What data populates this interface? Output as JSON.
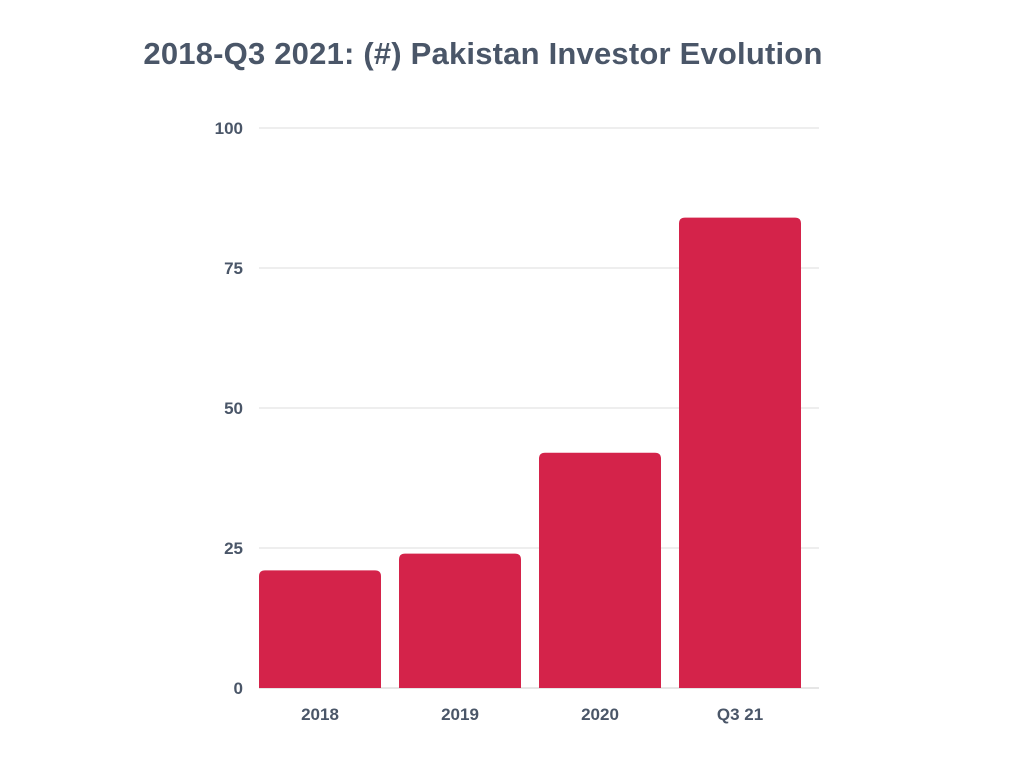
{
  "chart_data": {
    "type": "bar",
    "title": "2018-Q3 2021: (#) Pakistan Investor Evolution",
    "xlabel": "",
    "ylabel": "",
    "categories": [
      "2018",
      "2019",
      "2020",
      "Q3 21"
    ],
    "values": [
      21,
      24,
      42,
      84
    ],
    "ylim": [
      0,
      100
    ],
    "yticks": [
      0,
      25,
      50,
      75,
      100
    ],
    "grid": true,
    "legend": "none",
    "bar_color": "#d4234a"
  }
}
